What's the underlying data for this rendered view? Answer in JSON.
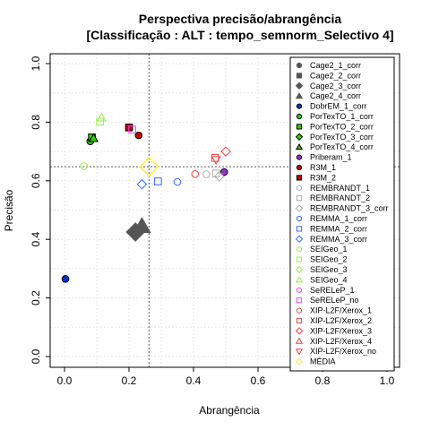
{
  "chart_data": {
    "type": "scatter",
    "title": "Perspectiva precisão/abrangência",
    "subtitle": "[Classificação : ALT : tempo_semnorm_Selectivo 4]",
    "xlabel": "Abrangência",
    "ylabel": "Precisão",
    "xlim": [
      0,
      1
    ],
    "ylim": [
      0,
      1
    ],
    "xticks": [
      "0.0",
      "0.2",
      "0.4",
      "0.6",
      "0.8",
      "1.0"
    ],
    "yticks": [
      "0.0",
      "0.2",
      "0.4",
      "0.6",
      "0.8",
      "1.0"
    ],
    "grid": true,
    "legend_position": "top-right",
    "reference_lines": {
      "x": 0.262,
      "y": 0.648
    },
    "series": [
      {
        "name": "Cage2_1_corr",
        "shape": "circle",
        "color": "#555555",
        "fill": "#555555",
        "points": []
      },
      {
        "name": "Cage2_2_corr",
        "shape": "square",
        "color": "#555555",
        "fill": "#555555",
        "points": []
      },
      {
        "name": "Cage2_3_corr",
        "shape": "diamond",
        "color": "#555555",
        "fill": "#555555",
        "points": [
          [
            0.22,
            0.425
          ]
        ]
      },
      {
        "name": "Cage2_4_corr",
        "shape": "triangle",
        "color": "#555555",
        "fill": "#555555",
        "points": [
          [
            0.24,
            0.445
          ]
        ]
      },
      {
        "name": "DobrEM_1_corr",
        "shape": "circle",
        "color": "#000000",
        "fill": "#0033cc",
        "points": [
          [
            0.003,
            0.265
          ]
        ]
      },
      {
        "name": "PorTexTO_1_corr",
        "shape": "circle",
        "color": "#000000",
        "fill": "#33cc00",
        "points": [
          [
            0.08,
            0.735
          ]
        ]
      },
      {
        "name": "PorTexTO_2_corr",
        "shape": "square",
        "color": "#000000",
        "fill": "#33cc00",
        "points": [
          [
            0.085,
            0.748
          ]
        ]
      },
      {
        "name": "PorTexTO_3_corr",
        "shape": "diamond",
        "color": "#000000",
        "fill": "#33cc00",
        "points": []
      },
      {
        "name": "PorTexTO_4_corr",
        "shape": "triangle",
        "color": "#000000",
        "fill": "#33cc00",
        "points": [
          [
            0.09,
            0.745
          ]
        ]
      },
      {
        "name": "Priberam_1",
        "shape": "circle",
        "color": "#000000",
        "fill": "#9933cc",
        "points": [
          [
            0.495,
            0.63
          ]
        ]
      },
      {
        "name": "R3M_1",
        "shape": "circle",
        "color": "#000000",
        "fill": "#cc0000",
        "points": [
          [
            0.23,
            0.755
          ]
        ]
      },
      {
        "name": "R3M_2",
        "shape": "square",
        "color": "#000000",
        "fill": "#cc0000",
        "points": [
          [
            0.2,
            0.782
          ]
        ]
      },
      {
        "name": "REMBRANDT_1",
        "shape": "circle",
        "color": "#aaaaaa",
        "fill": "none",
        "points": [
          [
            0.44,
            0.622
          ]
        ]
      },
      {
        "name": "REMBRANDT_2",
        "shape": "square",
        "color": "#aaaaaa",
        "fill": "none",
        "points": [
          [
            0.47,
            0.625
          ]
        ]
      },
      {
        "name": "REMBRANDT_3_corr",
        "shape": "diamond",
        "color": "#aaaaaa",
        "fill": "none",
        "points": [
          [
            0.48,
            0.615
          ]
        ]
      },
      {
        "name": "REMMA_1_corr",
        "shape": "circle",
        "color": "#3366ff",
        "fill": "none",
        "points": [
          [
            0.35,
            0.596
          ]
        ]
      },
      {
        "name": "REMMA_2_corr",
        "shape": "square",
        "color": "#3366ff",
        "fill": "none",
        "points": [
          [
            0.29,
            0.598
          ]
        ]
      },
      {
        "name": "REMMA_3_corr",
        "shape": "diamond",
        "color": "#3366ff",
        "fill": "none",
        "points": [
          [
            0.24,
            0.588
          ]
        ]
      },
      {
        "name": "SEIGeo_1",
        "shape": "circle",
        "color": "#99ee44",
        "fill": "none",
        "points": [
          [
            0.06,
            0.65
          ]
        ]
      },
      {
        "name": "SEIGeo_2",
        "shape": "square",
        "color": "#99ee44",
        "fill": "none",
        "points": [
          [
            0.11,
            0.802
          ]
        ]
      },
      {
        "name": "SEIGeo_3",
        "shape": "diamond",
        "color": "#99ee44",
        "fill": "none",
        "points": []
      },
      {
        "name": "SEIGeo_4",
        "shape": "triangle",
        "color": "#99ee44",
        "fill": "none",
        "points": [
          [
            0.115,
            0.815
          ]
        ]
      },
      {
        "name": "SeRELeP_1",
        "shape": "circle",
        "color": "#ee44ee",
        "fill": "none",
        "points": []
      },
      {
        "name": "SeRELeP_no",
        "shape": "square",
        "color": "#ee44ee",
        "fill": "none",
        "points": [
          [
            0.21,
            0.775
          ]
        ]
      },
      {
        "name": "XIP-L2F/Xerox_1",
        "shape": "circle",
        "color": "#ee4444",
        "fill": "none",
        "points": [
          [
            0.405,
            0.623
          ]
        ]
      },
      {
        "name": "XIP-L2F/Xerox_2",
        "shape": "square",
        "color": "#ee4444",
        "fill": "none",
        "points": [
          [
            0.467,
            0.678
          ]
        ]
      },
      {
        "name": "XIP-L2F/Xerox_3",
        "shape": "diamond",
        "color": "#ee4444",
        "fill": "none",
        "points": [
          [
            0.5,
            0.7
          ]
        ]
      },
      {
        "name": "XIP-L2F/Xerox_4",
        "shape": "triangle",
        "color": "#ee4444",
        "fill": "none",
        "points": []
      },
      {
        "name": "XIP-L2F/Xerox_no",
        "shape": "triangle-down",
        "color": "#ee4444",
        "fill": "none",
        "points": [
          [
            0.47,
            0.672
          ]
        ]
      },
      {
        "name": "MÉDIA",
        "shape": "diamond",
        "color": "#ffee33",
        "fill": "none",
        "points": [
          [
            0.262,
            0.648
          ]
        ]
      }
    ]
  }
}
